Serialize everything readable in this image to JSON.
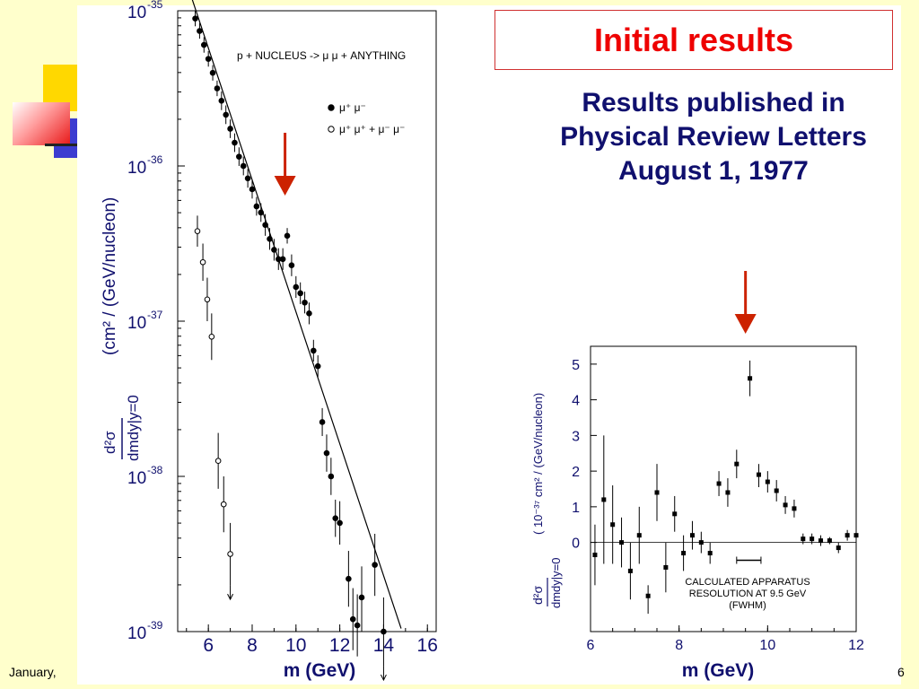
{
  "title": "Initial results",
  "subtitle_lines": [
    "Results published in",
    "Physical Review Letters",
    "August 1, 1977"
  ],
  "footer": {
    "left": "January,",
    "right": "6"
  },
  "colors": {
    "background": "#ffffcc",
    "title_red": "#ee0000",
    "navy": "#10106e",
    "arrow_red": "#cc2200"
  },
  "chart_data": [
    {
      "type": "scatter",
      "title": "",
      "annotation": "p + NUCLEUS -> μ μ + ANYTHING",
      "xlabel": "m (GeV)",
      "ylabel": "(cm² / (GeV/nucleon)",
      "ylabel_prefix": "d²σ",
      "ylabel_den": "dmdy|y=0",
      "yscale": "log",
      "xlim": [
        4.6,
        16.4
      ],
      "ylim": [
        -39,
        -35
      ],
      "x_ticks": [
        "6",
        "8",
        "10",
        "12",
        "14",
        "16"
      ],
      "y_ticks": [
        {
          "exp": -35,
          "label": "10",
          "sup": "-35"
        },
        {
          "exp": -36,
          "label": "10",
          "sup": "-36"
        },
        {
          "exp": -37,
          "label": "10",
          "sup": "-37"
        },
        {
          "exp": -38,
          "label": "10",
          "sup": "-38"
        },
        {
          "exp": -39,
          "label": "10",
          "sup": "-39"
        }
      ],
      "legend": [
        {
          "marker": "filled",
          "label": "μ⁺ μ⁻"
        },
        {
          "marker": "open",
          "label": "μ⁺ μ⁺ + μ⁻ μ⁻"
        }
      ],
      "legend_position": "top-right",
      "fit_line": [
        [
          5.2,
          -34.9
        ],
        [
          14.8,
          -38.98
        ]
      ],
      "arrow_at_x": 9.5,
      "series": [
        {
          "marker": "filled",
          "points": [
            [
              5.4,
              -35.05,
              -35.0,
              -35.1
            ],
            [
              5.6,
              -35.13,
              -35.08,
              -35.18
            ],
            [
              5.8,
              -35.22,
              -35.17,
              -35.27
            ],
            [
              6.0,
              -35.31,
              -35.26,
              -35.36
            ],
            [
              6.2,
              -35.4,
              -35.35,
              -35.45
            ],
            [
              6.4,
              -35.5,
              -35.45,
              -35.55
            ],
            [
              6.6,
              -35.58,
              -35.52,
              -35.64
            ],
            [
              6.8,
              -35.67,
              -35.61,
              -35.73
            ],
            [
              7.0,
              -35.76,
              -35.7,
              -35.82
            ],
            [
              7.2,
              -35.85,
              -35.79,
              -35.91
            ],
            [
              7.4,
              -35.94,
              -35.88,
              -36.0
            ],
            [
              7.6,
              -36.0,
              -35.94,
              -36.06
            ],
            [
              7.8,
              -36.08,
              -36.02,
              -36.14
            ],
            [
              8.0,
              -36.15,
              -36.09,
              -36.21
            ],
            [
              8.2,
              -36.26,
              -36.2,
              -36.32
            ],
            [
              8.4,
              -36.3,
              -36.24,
              -36.36
            ],
            [
              8.6,
              -36.38,
              -36.31,
              -36.45
            ],
            [
              8.8,
              -36.47,
              -36.4,
              -36.54
            ],
            [
              9.0,
              -36.54,
              -36.47,
              -36.61
            ],
            [
              9.2,
              -36.6,
              -36.53,
              -36.67
            ],
            [
              9.4,
              -36.6,
              -36.53,
              -36.67
            ],
            [
              9.6,
              -36.45,
              -36.4,
              -36.5
            ],
            [
              9.8,
              -36.64,
              -36.57,
              -36.71
            ],
            [
              10.0,
              -36.78,
              -36.71,
              -36.85
            ],
            [
              10.2,
              -36.82,
              -36.75,
              -36.89
            ],
            [
              10.4,
              -36.88,
              -36.81,
              -36.95
            ],
            [
              10.6,
              -36.95,
              -36.88,
              -37.02
            ],
            [
              10.8,
              -37.19,
              -37.12,
              -37.26
            ],
            [
              11.0,
              -37.29,
              -37.22,
              -37.36
            ],
            [
              11.2,
              -37.65,
              -37.56,
              -37.74
            ],
            [
              11.4,
              -37.85,
              -37.73,
              -37.97
            ],
            [
              11.6,
              -38.0,
              -37.88,
              -38.12
            ],
            [
              11.8,
              -38.27,
              -38.15,
              -38.39
            ],
            [
              12.0,
              -38.3,
              -38.16,
              -38.44
            ],
            [
              12.4,
              -38.66,
              -38.48,
              -38.84
            ],
            [
              12.6,
              -38.92,
              -38.72,
              -39.12
            ],
            [
              12.8,
              -38.96,
              -38.76,
              -39.16
            ],
            [
              13.0,
              -38.78,
              -38.58,
              -38.98
            ],
            [
              13.6,
              -38.57,
              -38.37,
              -38.77
            ],
            [
              14.0,
              -39.0,
              -38.78,
              -39.22
            ]
          ]
        },
        {
          "marker": "open",
          "points": [
            [
              5.5,
              -36.42,
              -36.32,
              -36.52
            ],
            [
              5.75,
              -36.62,
              -36.5,
              -36.74
            ],
            [
              5.95,
              -36.86,
              -36.72,
              -37.0
            ],
            [
              6.15,
              -37.1,
              -36.95,
              -37.25
            ],
            [
              6.45,
              -37.9,
              -37.72,
              -38.08
            ],
            [
              6.7,
              -38.18,
              -38.0,
              -38.36
            ],
            [
              7.0,
              -38.5,
              -38.3,
              -38.7
            ]
          ]
        }
      ]
    },
    {
      "type": "scatter",
      "title": "",
      "xlabel": "m (GeV)",
      "ylabel": "( 10⁻³⁷ cm² / (GeV/nucleon)",
      "ylabel_prefix": "d²σ",
      "ylabel_den": "dmdy|y=0",
      "xlim": [
        6,
        12
      ],
      "ylim": [
        -2.5,
        5.5
      ],
      "x_ticks": [
        "6",
        "8",
        "10",
        "12"
      ],
      "y_ticks": [
        "0",
        "1",
        "2",
        "3",
        "4",
        "5"
      ],
      "annotation_lines": [
        "CALCULATED APPARATUS",
        "RESOLUTION AT 9.5 GeV",
        "(FWHM)"
      ],
      "resolution_bar": [
        9.3,
        9.85,
        -0.5
      ],
      "arrow_at_x": 9.5,
      "points": [
        [
          6.1,
          -0.35,
          0.5,
          -1.2
        ],
        [
          6.3,
          1.2,
          3.0,
          -0.6
        ],
        [
          6.5,
          0.5,
          1.6,
          -0.6
        ],
        [
          6.7,
          0.0,
          0.7,
          -0.7
        ],
        [
          6.9,
          -0.8,
          0.0,
          -1.6
        ],
        [
          7.1,
          0.2,
          1.0,
          -0.6
        ],
        [
          7.3,
          -1.5,
          -1.2,
          -2.0
        ],
        [
          7.5,
          1.4,
          2.2,
          0.6
        ],
        [
          7.7,
          -0.7,
          0.0,
          -1.4
        ],
        [
          7.9,
          0.8,
          1.3,
          0.3
        ],
        [
          8.1,
          -0.3,
          0.2,
          -0.8
        ],
        [
          8.3,
          0.2,
          0.6,
          -0.2
        ],
        [
          8.5,
          0.0,
          0.3,
          -0.3
        ],
        [
          8.7,
          -0.3,
          0.0,
          -0.6
        ],
        [
          8.9,
          1.65,
          2.0,
          1.3
        ],
        [
          9.1,
          1.4,
          1.8,
          1.0
        ],
        [
          9.3,
          2.2,
          2.6,
          1.8
        ],
        [
          9.6,
          4.6,
          5.1,
          4.1
        ],
        [
          9.8,
          1.9,
          2.2,
          1.55
        ],
        [
          10.0,
          1.7,
          2.0,
          1.4
        ],
        [
          10.2,
          1.45,
          1.75,
          1.15
        ],
        [
          10.4,
          1.05,
          1.3,
          0.8
        ],
        [
          10.6,
          0.95,
          1.2,
          0.7
        ],
        [
          10.8,
          0.1,
          0.25,
          -0.05
        ],
        [
          11.0,
          0.1,
          0.25,
          -0.05
        ],
        [
          11.2,
          0.05,
          0.2,
          -0.1
        ],
        [
          11.4,
          0.05,
          0.15,
          -0.05
        ],
        [
          11.6,
          -0.15,
          0.0,
          -0.3
        ],
        [
          11.8,
          0.2,
          0.35,
          0.05
        ],
        [
          12.0,
          0.2,
          0.35,
          0.05
        ]
      ]
    }
  ]
}
